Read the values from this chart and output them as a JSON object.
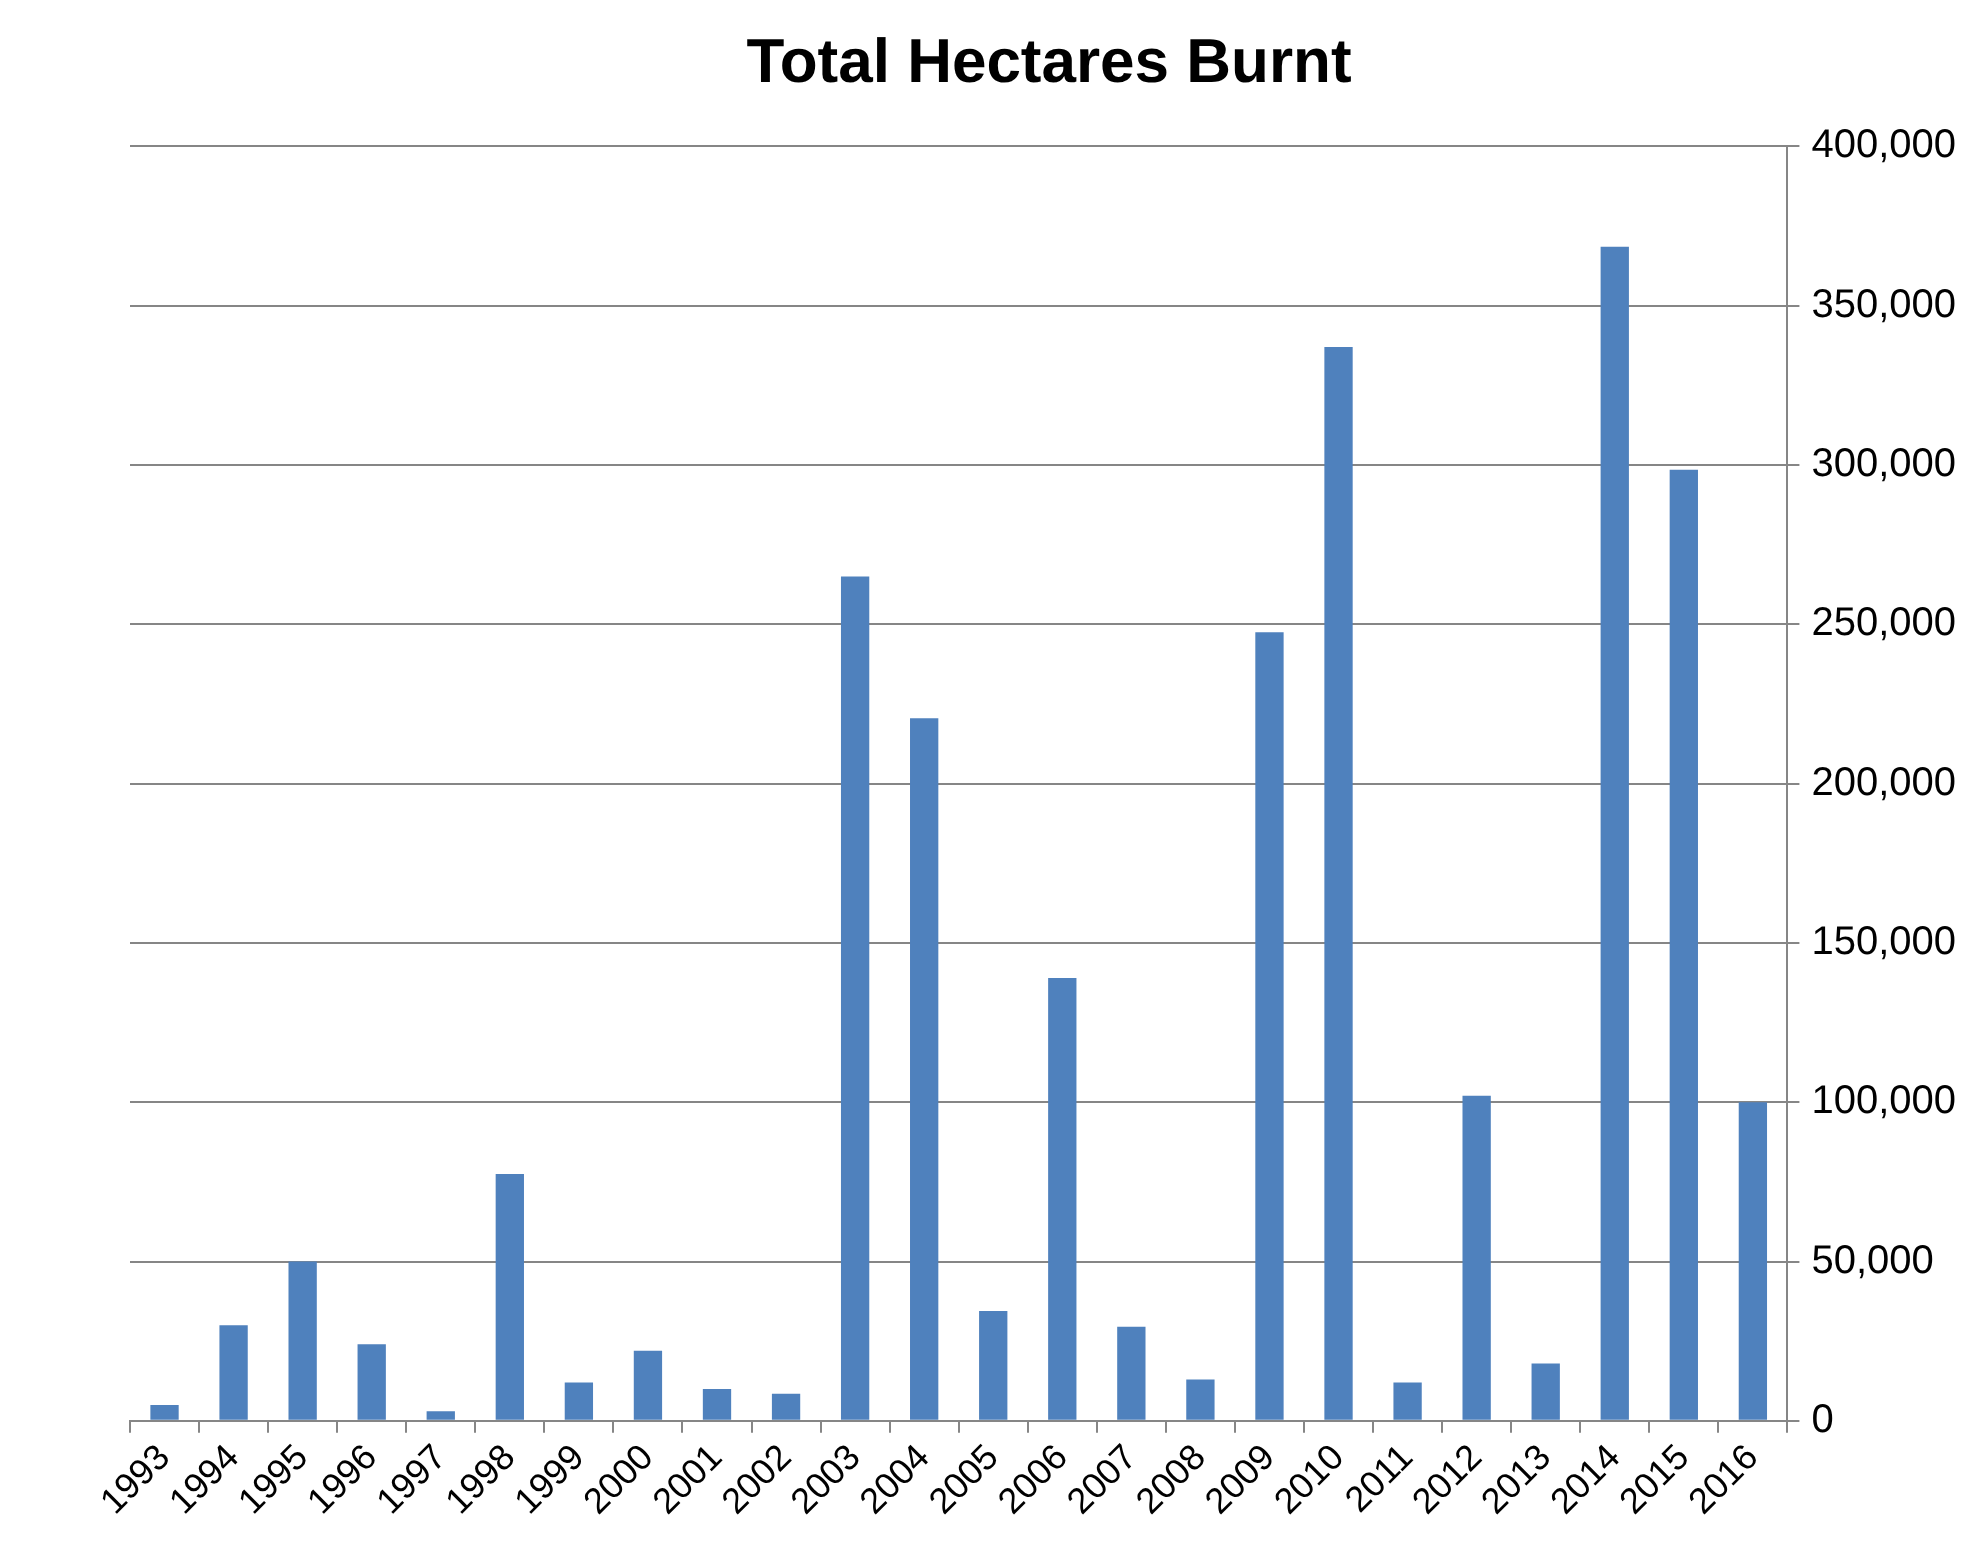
{
  "chart_data": {
    "type": "bar",
    "title": "Total Hectares Burnt",
    "categories": [
      "1993",
      "1994",
      "1995",
      "1996",
      "1997",
      "1998",
      "1999",
      "2000",
      "2001",
      "2002",
      "2003",
      "2004",
      "2005",
      "2006",
      "2007",
      "2008",
      "2009",
      "2010",
      "2011",
      "2012",
      "2013",
      "2014",
      "2015",
      "2016"
    ],
    "values": [
      5000,
      30000,
      50000,
      24000,
      3000,
      77500,
      12000,
      22000,
      10000,
      8500,
      265000,
      220500,
      34500,
      139000,
      29500,
      13000,
      247500,
      337000,
      12000,
      102000,
      18000,
      368500,
      298500,
      100000
    ],
    "color": "#4f81bd",
    "ylim": [
      0,
      400000
    ],
    "yticks": [
      0,
      {
        "value": 50000,
        "label": "50,000"
      },
      {
        "value": 100000,
        "label": "100,000"
      },
      {
        "value": 150000,
        "label": "150,000"
      },
      {
        "value": 200000,
        "label": "200,000"
      },
      {
        "value": 250000,
        "label": "250,000"
      },
      {
        "value": 300000,
        "label": "300,000"
      },
      {
        "value": 350000,
        "label": "350,000"
      },
      {
        "value": 400000,
        "label": "400,000"
      }
    ],
    "grid": "y"
  }
}
